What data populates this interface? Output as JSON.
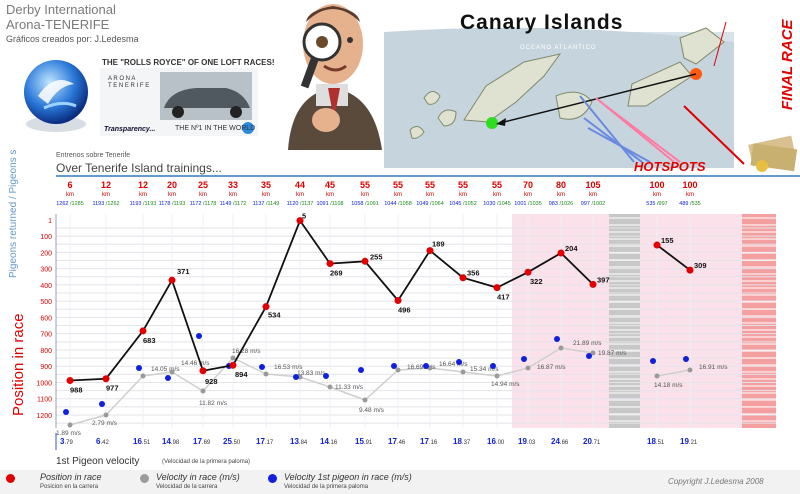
{
  "header": {
    "line1": "Derby International",
    "line2": "Arona-TENERIFE",
    "line3": "Gráficos creados por: J.Ledesma"
  },
  "ad": {
    "tagline": "THE \"ROLLS ROYCE\" OF ONE LOFT RACES!",
    "transparency": "Transparency...",
    "first": "THE Nº1 IN THE WORLD"
  },
  "map": {
    "title": "Canary Islands",
    "ocean": "OCEANO ATLANTICO",
    "hotspots": "HOTSPOTS",
    "final": "FINAL RACE"
  },
  "intro": {
    "small": "Entrenos sobre Tenerife",
    "title": "Over Tenerife Island trainings..."
  },
  "axes": {
    "top_label": "Pigeons returned / Pigeons sent",
    "left_label": "Position in race",
    "y_ticks": [
      "1",
      "100",
      "200",
      "300",
      "400",
      "500",
      "600",
      "700",
      "800",
      "900",
      "1000",
      "1100",
      "1200"
    ]
  },
  "legend": {
    "velocity_title": "1st Pigeon velocity",
    "velocity_sub": "(Velocidad de la primera paloma)",
    "item1": "Position in race",
    "item1_sub": "Posicion en la carrera",
    "item2": "Velocity in race (m/s)",
    "item2_sub": "Velocidad de la carrera",
    "item3": "Velocity 1st pigeon in race (m/s)",
    "item3_sub": "Velocidad de la primera paloma"
  },
  "copyright": "Copyright J.Ledesma 2008",
  "colors": {
    "red": "#e00000",
    "blue": "#1020e0",
    "gray": "#9a9a9a",
    "pink": "#fbe1ea",
    "hatch": "#f08080"
  },
  "chart_data": {
    "type": "line",
    "y_axis": "Position in race",
    "ylim": [
      1,
      1200
    ],
    "y_inverted": true,
    "distance_unit": "km",
    "distances": [
      "6",
      "12",
      "12",
      "20",
      "25",
      "33",
      "35",
      "44",
      "45",
      "55",
      "55",
      "55",
      "55",
      "55",
      "70",
      "80",
      "105",
      "100",
      "100"
    ],
    "pigeons": [
      "1262 /1285",
      "1193 /1262",
      "1193 /1193",
      "1178 /1193",
      "1172 /1178",
      "1149 /1172",
      "1137 /1149",
      "1120 /1137",
      "1091 /1108",
      "1058 /1091",
      "1044 /1058",
      "1049 /1064",
      "1045 /1052",
      "1030 /1045",
      "1001 /1035",
      "983 /1026",
      "997 /1002",
      "535 /997",
      "489 /535"
    ],
    "position": [
      988,
      977,
      683,
      371,
      928,
      894,
      534,
      5,
      269,
      255,
      496,
      189,
      356,
      417,
      322,
      204,
      397,
      155,
      309
    ],
    "velocity_race": [
      "1.89 m/s",
      "2.79 m/s",
      "14.05 m/s",
      "14.46 m/s",
      "11.82 m/s",
      "16.28 m/s",
      "16.53 m/s",
      "13.83 m/s",
      "11.33 m/s",
      "9.48 m/s",
      "16.69 m/s",
      "16.64 m/s",
      "15.34 m/s",
      "14.94 m/s",
      "16.87 m/s",
      "21.89 m/s",
      "19.87 m/s",
      "14.18 m/s",
      "16.91 m/s"
    ],
    "velocity_first": [
      [
        "3",
        ".79"
      ],
      [
        "6",
        ".42"
      ],
      [
        "16",
        ".51"
      ],
      [
        "14",
        ".98"
      ],
      [
        "17",
        ".69"
      ],
      [
        "25",
        ".50"
      ],
      [
        "17",
        ".17"
      ],
      [
        "13",
        ".84"
      ],
      [
        "14",
        ".16"
      ],
      [
        "15",
        ".91"
      ],
      [
        "17",
        ".46"
      ],
      [
        "17",
        ".16"
      ],
      [
        "18",
        ".37"
      ],
      [
        "16",
        ".00"
      ],
      [
        "19",
        ".03"
      ],
      [
        "24",
        ".66"
      ],
      [
        "20",
        ".71"
      ],
      [
        "18",
        ".51"
      ],
      [
        "19",
        ".21"
      ]
    ]
  }
}
